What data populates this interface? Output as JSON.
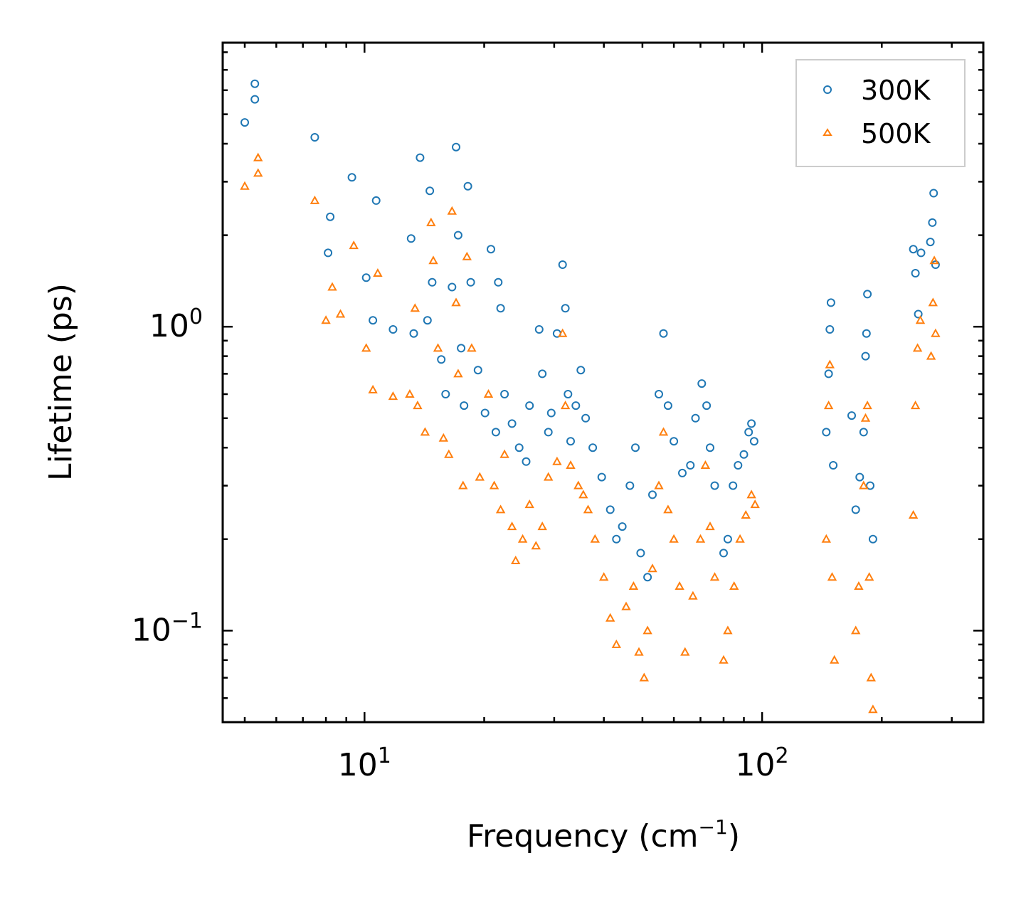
{
  "chart_data": {
    "type": "scatter",
    "title": "",
    "xlabel": "Frequency (cm",
    "xlabel_sup": "−1",
    "xlabel_close": ")",
    "ylabel": "Lifetime (ps)",
    "xscale": "log",
    "yscale": "log",
    "xlim": [
      4.4,
      360
    ],
    "ylim": [
      0.05,
      8.6
    ],
    "x_major_ticks": [
      {
        "value": 10,
        "base": "10",
        "exp": "1"
      },
      {
        "value": 100,
        "base": "10",
        "exp": "2"
      }
    ],
    "y_major_ticks": [
      {
        "value": 0.1,
        "base": "10",
        "exp": "−1"
      },
      {
        "value": 1,
        "base": "10",
        "exp": "0"
      }
    ],
    "legend_position": "top-right",
    "series": [
      {
        "name": "300K",
        "color": "#1f77b4",
        "marker": "circle",
        "points": [
          [
            5.0,
            4.7
          ],
          [
            5.3,
            6.3
          ],
          [
            5.3,
            5.6
          ],
          [
            7.5,
            4.2
          ],
          [
            8.1,
            1.75
          ],
          [
            8.2,
            2.3
          ],
          [
            9.3,
            3.1
          ],
          [
            10.1,
            1.45
          ],
          [
            10.5,
            1.05
          ],
          [
            10.7,
            2.6
          ],
          [
            11.8,
            0.98
          ],
          [
            13.1,
            1.95
          ],
          [
            13.3,
            0.95
          ],
          [
            13.8,
            3.6
          ],
          [
            14.4,
            1.05
          ],
          [
            14.6,
            2.8
          ],
          [
            14.8,
            1.4
          ],
          [
            15.6,
            0.78
          ],
          [
            16.0,
            0.6
          ],
          [
            16.6,
            1.35
          ],
          [
            17.0,
            3.9
          ],
          [
            17.2,
            2.0
          ],
          [
            17.5,
            0.85
          ],
          [
            17.8,
            0.55
          ],
          [
            18.2,
            2.9
          ],
          [
            18.5,
            1.4
          ],
          [
            19.3,
            0.72
          ],
          [
            20.1,
            0.52
          ],
          [
            20.8,
            1.8
          ],
          [
            21.4,
            0.45
          ],
          [
            21.7,
            1.4
          ],
          [
            22.0,
            1.15
          ],
          [
            22.5,
            0.6
          ],
          [
            23.5,
            0.48
          ],
          [
            24.5,
            0.4
          ],
          [
            25.5,
            0.36
          ],
          [
            26.0,
            0.55
          ],
          [
            27.5,
            0.98
          ],
          [
            28.0,
            0.7
          ],
          [
            29.0,
            0.45
          ],
          [
            29.5,
            0.52
          ],
          [
            30.5,
            0.95
          ],
          [
            31.5,
            1.6
          ],
          [
            32.0,
            1.15
          ],
          [
            32.5,
            0.6
          ],
          [
            33.0,
            0.42
          ],
          [
            34.0,
            0.55
          ],
          [
            35.0,
            0.72
          ],
          [
            36.0,
            0.5
          ],
          [
            37.5,
            0.4
          ],
          [
            39.5,
            0.32
          ],
          [
            41.5,
            0.25
          ],
          [
            43.0,
            0.2
          ],
          [
            44.5,
            0.22
          ],
          [
            46.5,
            0.3
          ],
          [
            48.0,
            0.4
          ],
          [
            49.5,
            0.18
          ],
          [
            51.5,
            0.15
          ],
          [
            53.0,
            0.28
          ],
          [
            55.0,
            0.6
          ],
          [
            56.5,
            0.95
          ],
          [
            58.0,
            0.55
          ],
          [
            60.0,
            0.42
          ],
          [
            63.0,
            0.33
          ],
          [
            66.0,
            0.35
          ],
          [
            68.0,
            0.5
          ],
          [
            70.5,
            0.65
          ],
          [
            72.5,
            0.55
          ],
          [
            74.0,
            0.4
          ],
          [
            76.0,
            0.3
          ],
          [
            80.0,
            0.18
          ],
          [
            82.0,
            0.2
          ],
          [
            84.5,
            0.3
          ],
          [
            87.0,
            0.35
          ],
          [
            90.0,
            0.38
          ],
          [
            92.5,
            0.45
          ],
          [
            94.0,
            0.48
          ],
          [
            95.5,
            0.42
          ],
          [
            145.0,
            0.45
          ],
          [
            147.0,
            0.7
          ],
          [
            148.0,
            0.98
          ],
          [
            149.0,
            1.2
          ],
          [
            151.0,
            0.35
          ],
          [
            168.0,
            0.51
          ],
          [
            172.0,
            0.25
          ],
          [
            176.0,
            0.32
          ],
          [
            180.0,
            0.45
          ],
          [
            182.0,
            0.8
          ],
          [
            183.0,
            0.95
          ],
          [
            184.0,
            1.28
          ],
          [
            187.0,
            0.3
          ],
          [
            190.0,
            0.2
          ],
          [
            240.0,
            1.8
          ],
          [
            243.0,
            1.5
          ],
          [
            247.0,
            1.1
          ],
          [
            251.0,
            1.75
          ],
          [
            265.0,
            1.9
          ],
          [
            268.0,
            2.2
          ],
          [
            270.0,
            2.75
          ],
          [
            273.0,
            1.6
          ]
        ]
      },
      {
        "name": "500K",
        "color": "#ff7f0e",
        "marker": "triangle",
        "points": [
          [
            5.0,
            2.9
          ],
          [
            5.4,
            3.6
          ],
          [
            5.4,
            3.2
          ],
          [
            7.5,
            2.6
          ],
          [
            8.0,
            1.05
          ],
          [
            8.3,
            1.35
          ],
          [
            8.7,
            1.1
          ],
          [
            9.4,
            1.85
          ],
          [
            10.1,
            0.85
          ],
          [
            10.5,
            0.62
          ],
          [
            10.8,
            1.5
          ],
          [
            11.8,
            0.59
          ],
          [
            13.0,
            0.6
          ],
          [
            13.4,
            1.15
          ],
          [
            13.6,
            0.55
          ],
          [
            14.2,
            0.45
          ],
          [
            14.7,
            2.2
          ],
          [
            14.9,
            1.65
          ],
          [
            15.3,
            0.85
          ],
          [
            15.8,
            0.43
          ],
          [
            16.3,
            0.38
          ],
          [
            16.6,
            2.4
          ],
          [
            17.0,
            1.2
          ],
          [
            17.2,
            0.7
          ],
          [
            17.7,
            0.3
          ],
          [
            18.1,
            1.7
          ],
          [
            18.6,
            0.85
          ],
          [
            19.5,
            0.32
          ],
          [
            20.5,
            0.6
          ],
          [
            21.2,
            0.3
          ],
          [
            22.0,
            0.25
          ],
          [
            22.5,
            0.38
          ],
          [
            23.5,
            0.22
          ],
          [
            24.0,
            0.17
          ],
          [
            25.0,
            0.2
          ],
          [
            26.0,
            0.26
          ],
          [
            27.0,
            0.19
          ],
          [
            28.0,
            0.22
          ],
          [
            29.0,
            0.32
          ],
          [
            30.5,
            0.36
          ],
          [
            31.5,
            0.95
          ],
          [
            32.0,
            0.55
          ],
          [
            33.0,
            0.35
          ],
          [
            34.5,
            0.3
          ],
          [
            35.5,
            0.28
          ],
          [
            36.5,
            0.25
          ],
          [
            38.0,
            0.2
          ],
          [
            40.0,
            0.15
          ],
          [
            41.5,
            0.11
          ],
          [
            43.0,
            0.09
          ],
          [
            45.5,
            0.12
          ],
          [
            47.5,
            0.14
          ],
          [
            49.0,
            0.085
          ],
          [
            50.5,
            0.07
          ],
          [
            51.5,
            0.1
          ],
          [
            53.0,
            0.16
          ],
          [
            55.0,
            0.3
          ],
          [
            56.5,
            0.45
          ],
          [
            58.0,
            0.25
          ],
          [
            60.0,
            0.2
          ],
          [
            62.0,
            0.14
          ],
          [
            64.0,
            0.085
          ],
          [
            67.0,
            0.13
          ],
          [
            70.0,
            0.2
          ],
          [
            72.0,
            0.35
          ],
          [
            74.0,
            0.22
          ],
          [
            76.0,
            0.15
          ],
          [
            80.0,
            0.08
          ],
          [
            82.0,
            0.1
          ],
          [
            85.0,
            0.14
          ],
          [
            88.0,
            0.2
          ],
          [
            91.0,
            0.24
          ],
          [
            94.0,
            0.28
          ],
          [
            96.0,
            0.26
          ],
          [
            145.0,
            0.2
          ],
          [
            147.0,
            0.55
          ],
          [
            148.0,
            0.75
          ],
          [
            150.0,
            0.15
          ],
          [
            152.0,
            0.08
          ],
          [
            172.0,
            0.1
          ],
          [
            175.0,
            0.14
          ],
          [
            180.0,
            0.3
          ],
          [
            182.0,
            0.5
          ],
          [
            184.0,
            0.55
          ],
          [
            186.0,
            0.15
          ],
          [
            188.0,
            0.07
          ],
          [
            190.0,
            0.055
          ],
          [
            240.0,
            0.24
          ],
          [
            243.0,
            0.55
          ],
          [
            246.0,
            0.85
          ],
          [
            250.0,
            1.05
          ],
          [
            266.0,
            0.8
          ],
          [
            269.0,
            1.2
          ],
          [
            271.0,
            1.65
          ],
          [
            273.0,
            0.95
          ]
        ]
      }
    ]
  }
}
